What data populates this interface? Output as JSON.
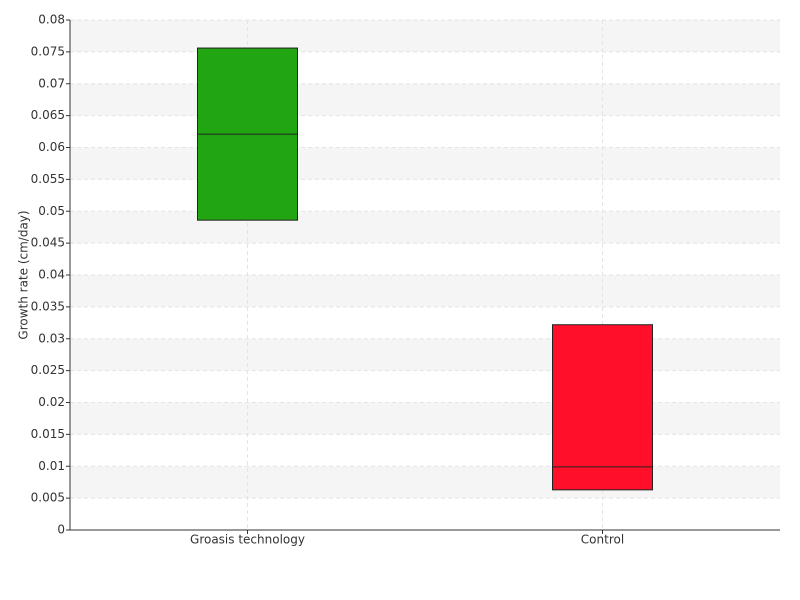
{
  "chart_data": {
    "type": "box",
    "y_label": "Growth rate (cm/day)",
    "categories": [
      "Groasis technology",
      "Control"
    ],
    "colors": [
      "#22a512",
      "#ff0f29"
    ],
    "low": [
      0.0486,
      0.0063
    ],
    "median": [
      0.0621,
      0.0099
    ],
    "high": [
      0.0756,
      0.0322
    ],
    "ylim": [
      0,
      0.08
    ],
    "yticks": [
      0,
      0.005,
      0.01,
      0.015,
      0.02,
      0.025,
      0.03,
      0.035,
      0.04,
      0.045,
      0.05,
      0.055,
      0.06,
      0.065,
      0.07,
      0.075,
      0.08
    ],
    "grid": true
  }
}
